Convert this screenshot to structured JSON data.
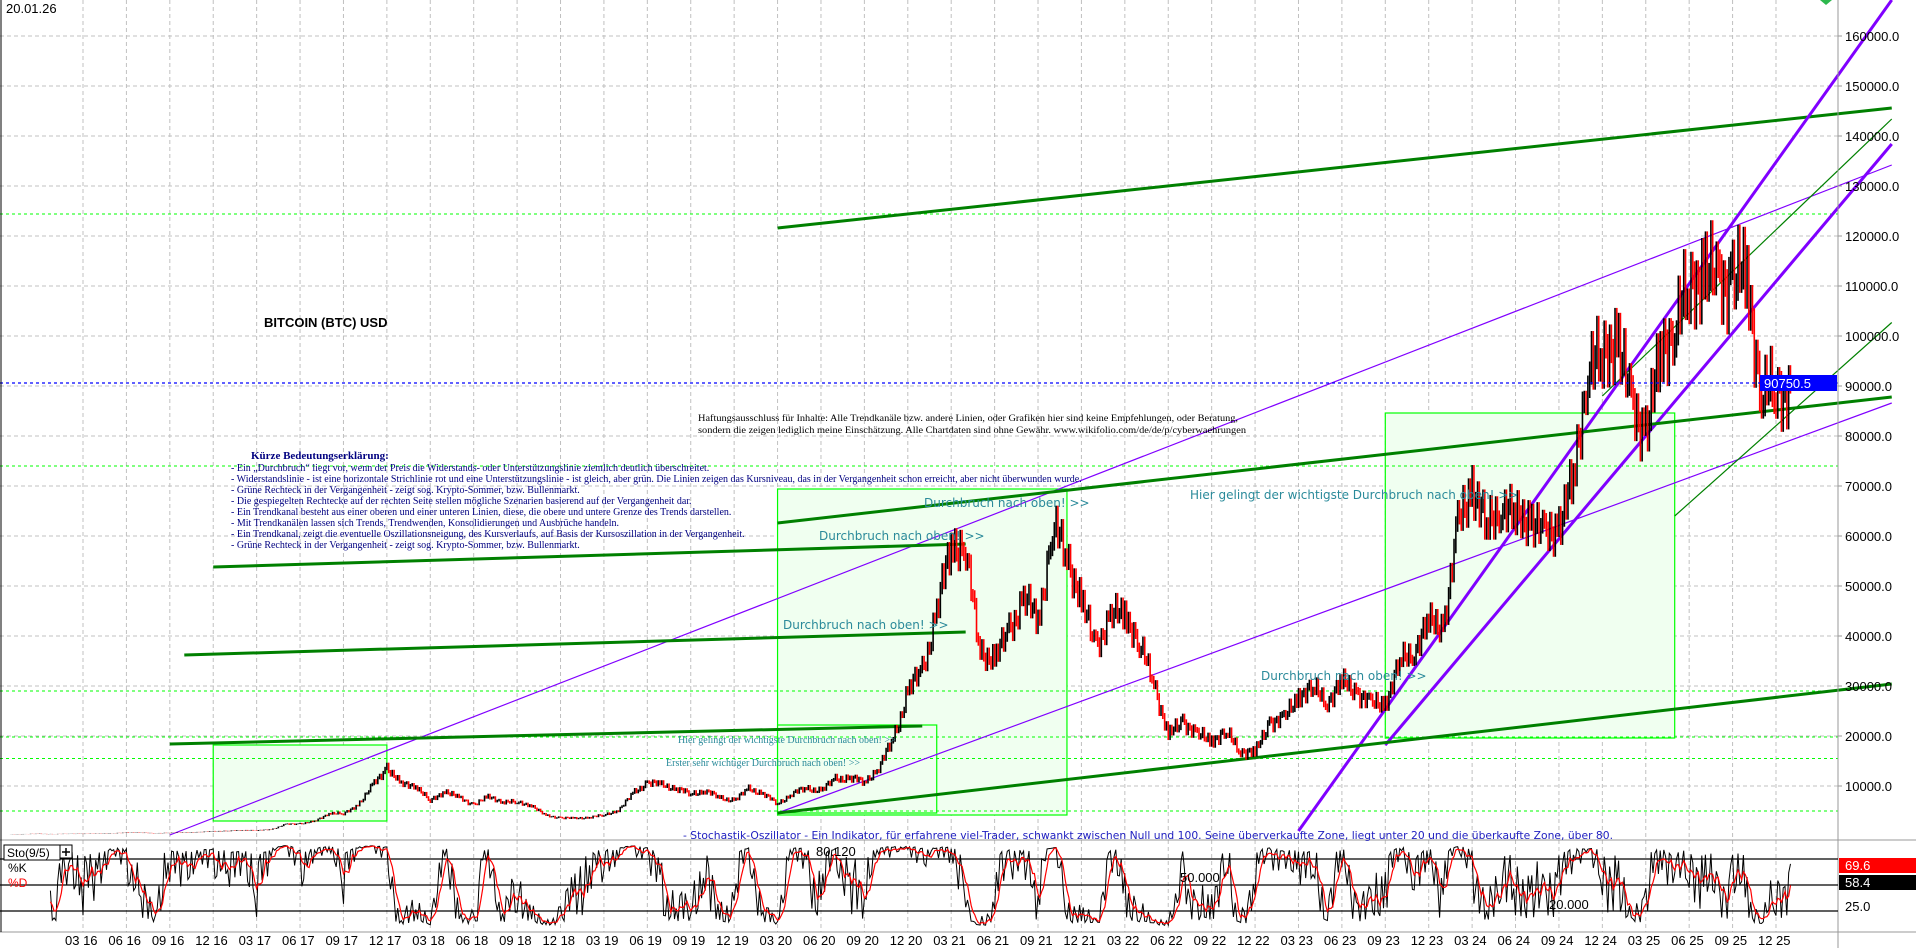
{
  "header": {
    "date": "20.01.26",
    "title": "BITCOIN (BTC) USD"
  },
  "legend": {
    "title": "Kürze Bedeutungserklärung:",
    "lines": [
      "- Ein „Durchbruch“ liegt vor, wenn der Preis die Widerstands- oder Unterstützungslinie ziemlich deutlich überschreitet.",
      "- Widerstandslinie - ist eine horizontale Strichlinie rot und eine Unterstützungslinie - ist gleich, aber grün. Die Linien zeigen das Kursniveau, das in der Vergangenheit schon erreicht, aber nicht überwunden wurde.",
      "- Grüne Rechteck in der Vergangenheit - zeigt sog. Krypto-Sommer, bzw. Bullenmarkt.",
      "- Die gespiegelten Rechtecke auf der rechten Seite stellen mögliche Szenarien basierend auf der Vergangenheit dar.",
      "- Ein Trendkanal besteht aus einer oberen und einer unteren Linien, diese, die obere und untere Grenze des Trends darstellen.",
      "- Mit Trendkanälen lassen sich Trends, Trendwenden, Konsolidierungen und Ausbrüche handeln.",
      " - Ein Trendkanal, zeigt die eventuelle Oszillationsneigung, des Kursverlaufs, auf Basis der Kursoszillation in der Vergangenheit.",
      " - Grüne Rechteck in der Vergangenheit - zeigt sog. Krypto-Sommer, bzw. Bullenmarkt."
    ]
  },
  "disclaimer": [
    "Haftungsausschluss für Inhalte: Alle Trendkanäle bzw. andere Linien, oder Grafiken hier sind keine Empfehlungen, oder Beratung,",
    "sondern die zeigen lediglich meine  Einschätzung. Alle Chartdaten sind ohne Gewähr.  www.wikifolio.com/de/de/p/cyberwaehrungen"
  ],
  "annotations": {
    "breakout_1": "Durchbruch nach oben! >>",
    "breakout_2": "Durchbruch nach oben! >>",
    "breakout_3": "Durchbruch nach oben! >>",
    "breakout_4": "Durchbruch nach oben! >>",
    "most_important": "Hier gelingt der wichtigste Durchbruch nach oben! >>",
    "most_important_small": "Hier gelingt der wichtigste Durchbruch nach oben! >>",
    "first_important": "Erster sehr wichtiger Durchbruch nach oben! >>",
    "stochastic_note": "- Stochastik-Oszillator - Ein Indikator, für erfahrene viel-Trader, schwankt zwischen Null und 100. Seine überverkaufte Zone, liegt unter 20 und die überkaufte Zone, über 80."
  },
  "colors": {
    "candle_up": "#000000",
    "candle_down": "#ff0000",
    "trend_green": "#008000",
    "channel_purple": "#8000ff",
    "zone_green": "#00ff00",
    "zone_fill": "#f0fff0",
    "price_marker": "#0000ff",
    "annotation": "#2a8a9a",
    "legend_text": "#000080"
  },
  "chart_data": {
    "type": "candlestick",
    "title": "BITCOIN (BTC) USD",
    "price_axis": {
      "ticks": [
        "10000.0",
        "20000.0",
        "30000.0",
        "40000.0",
        "50000.0",
        "60000.0",
        "70000.0",
        "80000.0",
        "90000.0",
        "100000.0",
        "110000.0",
        "120000.0",
        "130000.0",
        "140000.0",
        "150000.0",
        "160000.0"
      ],
      "range": [
        0,
        167000
      ],
      "position": "right",
      "grid": true
    },
    "time_axis": {
      "ticks": [
        "03 16",
        "06 16",
        "09 16",
        "12 16",
        "03 17",
        "06 17",
        "09 17",
        "12 17",
        "03 18",
        "06 18",
        "09 18",
        "12 18",
        "03 19",
        "06 19",
        "09 19",
        "12 19",
        "03 20",
        "06 20",
        "09 20",
        "12 20",
        "03 21",
        "06 21",
        "09 21",
        "12 21",
        "03 22",
        "06 22",
        "09 22",
        "12 22",
        "03 23",
        "06 23",
        "09 23",
        "12 23",
        "03 24",
        "06 24",
        "09 24",
        "12 24",
        "03 25",
        "06 25",
        "09 25",
        "12 25"
      ],
      "grid": true
    },
    "last_price": "90750.5",
    "monthly_close": {
      "start": "2015-10",
      "values": [
        310,
        380,
        430,
        370,
        440,
        415,
        450,
        530,
        670,
        625,
        575,
        610,
        700,
        745,
        965,
        970,
        1190,
        1080,
        1350,
        2300,
        2480,
        2880,
        4700,
        4340,
        6450,
        10000,
        14000,
        10200,
        10300,
        6900,
        9200,
        7500,
        6400,
        7700,
        7000,
        6600,
        6300,
        4000,
        3700,
        3450,
        3800,
        4100,
        5300,
        8500,
        10800,
        10100,
        9600,
        8300,
        9200,
        7550,
        7200,
        9350,
        8600,
        6400,
        8600,
        9450,
        9140,
        11350,
        11650,
        10780,
        13800,
        19700,
        29000,
        33100,
        45200,
        58800,
        57700,
        37300,
        35000,
        41500,
        47100,
        43800,
        61300,
        57000,
        46300,
        38500,
        43200,
        45500,
        37700,
        31800,
        19900,
        23300,
        20000,
        19400,
        20500,
        17200,
        16500,
        23100,
        23100,
        28500,
        29200,
        27200,
        30500,
        29200,
        26000,
        27000,
        34500,
        37700,
        42300,
        42600,
        61200,
        71300,
        60700,
        67500,
        62700,
        64600,
        58900,
        63300,
        70200,
        96400,
        93400,
        102400,
        84400,
        82500,
        94200,
        104600,
        107100,
        115800,
        108200,
        114000,
        109500,
        90400,
        87500,
        90750
      ]
    },
    "trend_lines": [
      {
        "from": [
          "2020-03",
          121600
        ],
        "to": [
          "2026-08",
          145600
        ],
        "color": "trend_green",
        "weight": "thick"
      },
      {
        "from": [
          "2016-09",
          200
        ],
        "to": [
          "2026-08",
          134200
        ],
        "color": "channel_purple",
        "weight": "thin"
      },
      {
        "from": [
          "2023-03",
          1000
        ],
        "to": [
          "2026-08",
          167200
        ],
        "color": "channel_purple",
        "weight": "thick"
      },
      {
        "from": [
          "2023-09",
          18200
        ],
        "to": [
          "2026-08",
          138400
        ],
        "color": "channel_purple",
        "weight": "thick"
      },
      {
        "from": [
          "2020-03",
          4600
        ],
        "to": [
          "2026-08",
          86600
        ],
        "color": "channel_purple",
        "weight": "thin"
      },
      {
        "from": [
          "2020-03",
          4600
        ],
        "to": [
          "2026-08",
          30400
        ],
        "color": "trend_green",
        "weight": "thick"
      },
      {
        "from": [
          "2020-03",
          62600
        ],
        "to": [
          "2026-08",
          87800
        ],
        "color": "trend_green",
        "weight": "thick"
      },
      {
        "from": [
          "2016-12",
          53800
        ],
        "to": [
          "2021-04",
          58400
        ],
        "color": "trend_green",
        "weight": "thick"
      },
      {
        "from": [
          "2016-10",
          36200
        ],
        "to": [
          "2021-04",
          40800
        ],
        "color": "trend_green",
        "weight": "thick"
      },
      {
        "from": [
          "2016-09",
          18400
        ],
        "to": [
          "2021-01",
          22000
        ],
        "color": "trend_green",
        "weight": "thick"
      },
      {
        "from": [
          "2025-05",
          64000
        ],
        "to": [
          "2026-08",
          102700
        ],
        "color": "trend_green",
        "weight": "thin"
      },
      {
        "from": [
          "2024-12",
          88000
        ],
        "to": [
          "2026-08",
          143400
        ],
        "color": "trend_green",
        "weight": "thin"
      }
    ],
    "zones": [
      {
        "from": [
          "2016-12",
          3000
        ],
        "to": [
          "2017-12",
          18200
        ]
      },
      {
        "from": [
          "2020-03",
          4200
        ],
        "to": [
          "2021-11",
          69400
        ]
      },
      {
        "from": [
          "2020-03",
          4600
        ],
        "to": [
          "2021-02",
          22200
        ]
      },
      {
        "from": [
          "2023-09",
          19600
        ],
        "to": [
          "2025-05",
          84600
        ]
      }
    ],
    "support_levels": [
      124400,
      74000,
      29000,
      19800,
      15500,
      5000
    ],
    "stochastic": {
      "label": "Sto(9/5)",
      "k_label": "%K",
      "d_label": "%D",
      "levels": [
        "80.120",
        "50.000",
        "20.000"
      ],
      "axis_label": "25.0",
      "last_d": "69.6",
      "last_k": "58.4"
    }
  }
}
